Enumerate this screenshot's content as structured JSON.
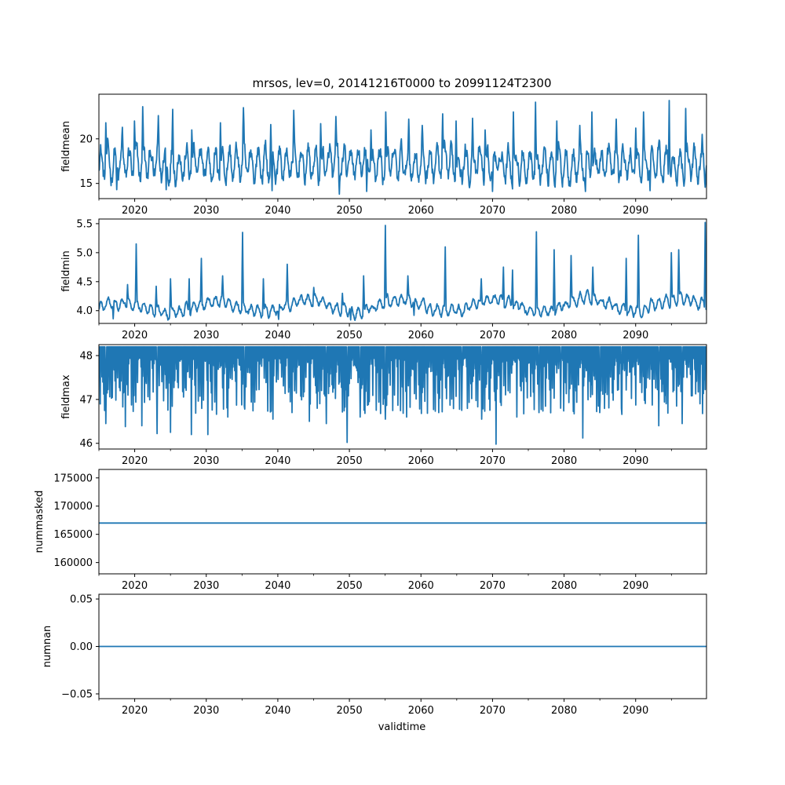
{
  "chart_data": {
    "type": "line",
    "title": "mrsos, lev=0, 20141216T0000 to 20991124T2300",
    "xlabel": "validtime",
    "x_range": [
      2015.0,
      2099.9
    ],
    "x_ticks": [
      2020,
      2030,
      2040,
      2050,
      2060,
      2070,
      2080,
      2090
    ],
    "x_tick_labels": [
      "2020",
      "2030",
      "2040",
      "2050",
      "2060",
      "2070",
      "2080",
      "2090"
    ],
    "x_minor_ticks": [
      2015,
      2025,
      2035,
      2045,
      2055,
      2065,
      2075,
      2085,
      2095
    ],
    "line_color": "#1f77b4",
    "panels": [
      {
        "ylabel": "fieldmean",
        "ylim": [
          13.3,
          25.0
        ],
        "yticks": [
          15,
          20
        ],
        "ytick_labels": [
          "15",
          "20"
        ],
        "series_kind": "seasonal_noise",
        "base": 17.2,
        "amplitude": 1.6,
        "noise": 1.0,
        "peaks": [
          {
            "x": 2016.0,
            "y": 21.8
          },
          {
            "x": 2018.3,
            "y": 21.3
          },
          {
            "x": 2020.0,
            "y": 22.0
          },
          {
            "x": 2021.1,
            "y": 23.6
          },
          {
            "x": 2023.3,
            "y": 22.6
          },
          {
            "x": 2025.3,
            "y": 23.3
          },
          {
            "x": 2028.0,
            "y": 21.0
          },
          {
            "x": 2032.0,
            "y": 21.8
          },
          {
            "x": 2035.2,
            "y": 23.5
          },
          {
            "x": 2039.0,
            "y": 21.6
          },
          {
            "x": 2042.2,
            "y": 23.2
          },
          {
            "x": 2046.0,
            "y": 21.7
          },
          {
            "x": 2048.1,
            "y": 22.5
          },
          {
            "x": 2053.0,
            "y": 21.0
          },
          {
            "x": 2055.1,
            "y": 23.0
          },
          {
            "x": 2058.3,
            "y": 22.2
          },
          {
            "x": 2060.2,
            "y": 21.5
          },
          {
            "x": 2063.0,
            "y": 22.8
          },
          {
            "x": 2064.9,
            "y": 22.0
          },
          {
            "x": 2067.2,
            "y": 22.3
          },
          {
            "x": 2069.0,
            "y": 21.0
          },
          {
            "x": 2072.9,
            "y": 23.0
          },
          {
            "x": 2076.0,
            "y": 24.1
          },
          {
            "x": 2079.0,
            "y": 22.0
          },
          {
            "x": 2082.2,
            "y": 21.5
          },
          {
            "x": 2083.9,
            "y": 23.0
          },
          {
            "x": 2087.3,
            "y": 22.2
          },
          {
            "x": 2090.0,
            "y": 21.2
          },
          {
            "x": 2091.1,
            "y": 23.0
          },
          {
            "x": 2094.7,
            "y": 24.3
          },
          {
            "x": 2097.0,
            "y": 23.4
          },
          {
            "x": 2099.3,
            "y": 20.5
          }
        ],
        "troughs": [
          {
            "x": 2017.5,
            "y": 14.3
          },
          {
            "x": 2024.4,
            "y": 14.3
          },
          {
            "x": 2039.2,
            "y": 14.2
          },
          {
            "x": 2048.6,
            "y": 13.8
          },
          {
            "x": 2052.4,
            "y": 14.1
          },
          {
            "x": 2070.0,
            "y": 14.1
          },
          {
            "x": 2083.0,
            "y": 14.1
          },
          {
            "x": 2092.0,
            "y": 14.2
          }
        ]
      },
      {
        "ylabel": "fieldmin",
        "ylim": [
          3.78,
          5.58
        ],
        "yticks": [
          4.0,
          4.5,
          5.0,
          5.5
        ],
        "ytick_labels": [
          "4.0",
          "4.5",
          "5.0",
          "5.5"
        ],
        "series_kind": "baseline_spikes",
        "base": 4.05,
        "amplitude": 0.08,
        "noise": 0.07,
        "peaks": [
          {
            "x": 2019.0,
            "y": 4.45
          },
          {
            "x": 2020.2,
            "y": 5.15
          },
          {
            "x": 2023.0,
            "y": 4.42
          },
          {
            "x": 2025.0,
            "y": 4.55
          },
          {
            "x": 2027.6,
            "y": 4.55
          },
          {
            "x": 2029.3,
            "y": 4.9
          },
          {
            "x": 2032.3,
            "y": 4.6
          },
          {
            "x": 2035.1,
            "y": 5.35
          },
          {
            "x": 2038.0,
            "y": 4.55
          },
          {
            "x": 2041.3,
            "y": 4.8
          },
          {
            "x": 2045.0,
            "y": 4.4
          },
          {
            "x": 2049.0,
            "y": 4.3
          },
          {
            "x": 2052.0,
            "y": 4.6
          },
          {
            "x": 2055.0,
            "y": 5.47
          },
          {
            "x": 2058.2,
            "y": 4.6
          },
          {
            "x": 2063.4,
            "y": 5.1
          },
          {
            "x": 2068.4,
            "y": 4.55
          },
          {
            "x": 2071.5,
            "y": 4.75
          },
          {
            "x": 2072.8,
            "y": 4.7
          },
          {
            "x": 2076.1,
            "y": 5.36
          },
          {
            "x": 2078.6,
            "y": 5.05
          },
          {
            "x": 2081.0,
            "y": 4.95
          },
          {
            "x": 2084.0,
            "y": 4.75
          },
          {
            "x": 2088.7,
            "y": 4.9
          },
          {
            "x": 2090.4,
            "y": 5.3
          },
          {
            "x": 2095.0,
            "y": 5.0
          },
          {
            "x": 2096.0,
            "y": 5.05
          },
          {
            "x": 2099.7,
            "y": 5.52
          }
        ],
        "troughs": [
          {
            "x": 2017.0,
            "y": 3.86
          },
          {
            "x": 2040.1,
            "y": 3.85
          },
          {
            "x": 2050.2,
            "y": 3.84
          },
          {
            "x": 2059.0,
            "y": 3.92
          }
        ]
      },
      {
        "ylabel": "fieldmax",
        "ylim": [
          45.87,
          48.25
        ],
        "yticks": [
          46,
          47,
          48
        ],
        "ytick_labels": [
          "46",
          "47",
          "48"
        ],
        "series_kind": "saturated_dips",
        "base": 48.2,
        "amplitude": 0,
        "noise": 0,
        "peaks": [],
        "troughs": [
          {
            "x": 2016.0,
            "y": 46.45
          },
          {
            "x": 2018.7,
            "y": 46.38
          },
          {
            "x": 2021.0,
            "y": 46.4
          },
          {
            "x": 2023.1,
            "y": 46.22
          },
          {
            "x": 2025.0,
            "y": 46.25
          },
          {
            "x": 2027.9,
            "y": 46.2
          },
          {
            "x": 2030.2,
            "y": 46.2
          },
          {
            "x": 2033.0,
            "y": 46.6
          },
          {
            "x": 2035.4,
            "y": 46.78
          },
          {
            "x": 2039.3,
            "y": 46.55
          },
          {
            "x": 2042.0,
            "y": 46.7
          },
          {
            "x": 2044.4,
            "y": 46.5
          },
          {
            "x": 2046.8,
            "y": 46.45
          },
          {
            "x": 2049.7,
            "y": 46.02
          },
          {
            "x": 2051.5,
            "y": 46.6
          },
          {
            "x": 2055.0,
            "y": 46.55
          },
          {
            "x": 2058.0,
            "y": 46.6
          },
          {
            "x": 2062.5,
            "y": 46.7
          },
          {
            "x": 2065.7,
            "y": 46.75
          },
          {
            "x": 2068.5,
            "y": 46.55
          },
          {
            "x": 2070.5,
            "y": 45.98
          },
          {
            "x": 2073.4,
            "y": 46.6
          },
          {
            "x": 2076.5,
            "y": 46.7
          },
          {
            "x": 2079.5,
            "y": 46.8
          },
          {
            "x": 2082.6,
            "y": 46.12
          },
          {
            "x": 2085.0,
            "y": 46.7
          },
          {
            "x": 2088.0,
            "y": 46.8
          },
          {
            "x": 2093.2,
            "y": 46.4
          },
          {
            "x": 2096.5,
            "y": 46.45
          },
          {
            "x": 2099.0,
            "y": 46.9
          }
        ]
      },
      {
        "ylabel": "nummasked",
        "ylim": [
          158000,
          176500
        ],
        "yticks": [
          160000,
          165000,
          170000,
          175000
        ],
        "ytick_labels": [
          "160000",
          "165000",
          "170000",
          "175000"
        ],
        "series_kind": "constant",
        "constant": 167000
      },
      {
        "ylabel": "numnan",
        "ylim": [
          -0.055,
          0.055
        ],
        "yticks": [
          -0.05,
          0.0,
          0.05
        ],
        "ytick_labels": [
          "−0.05",
          "0.00",
          "0.05"
        ],
        "series_kind": "constant",
        "constant": 0.0
      }
    ]
  }
}
